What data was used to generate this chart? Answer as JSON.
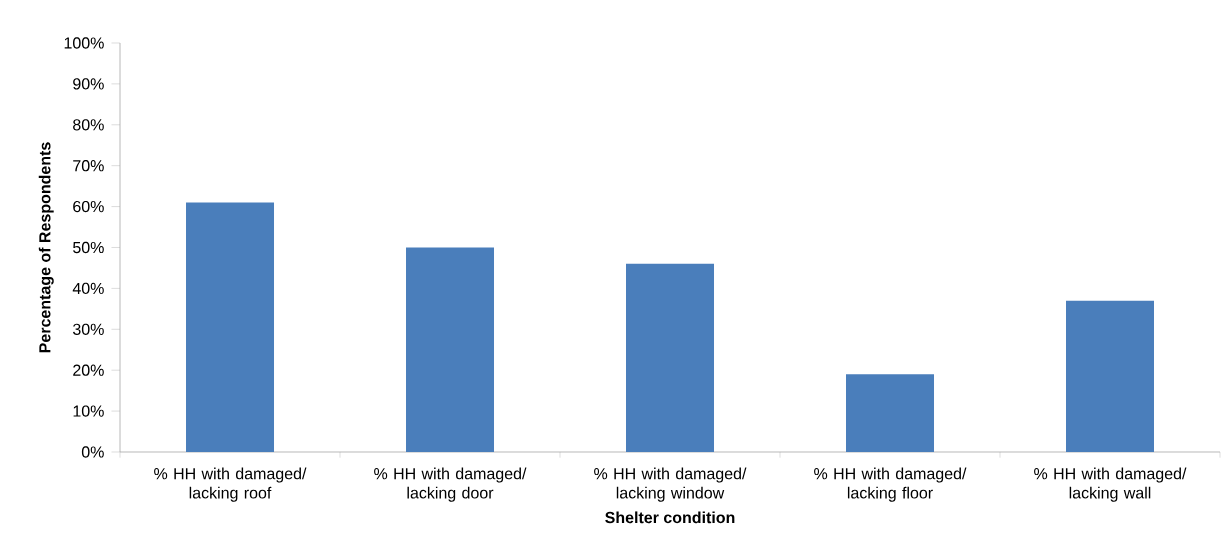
{
  "chart_data": {
    "type": "bar",
    "xlabel": "Shelter condition",
    "ylabel": "Percentage of Respondents",
    "categories": [
      "% HH with damaged/ lacking roof",
      "% HH with damaged/ lacking door",
      "% HH with damaged/ lacking window",
      "% HH with damaged/ lacking floor",
      "% HH with damaged/ lacking wall"
    ],
    "values": [
      61,
      50,
      46,
      19,
      37
    ],
    "color": "#4a7ebb",
    "ylim": [
      0,
      100
    ],
    "yticks": [
      {
        "value": 0,
        "label": "0%"
      },
      {
        "value": 10,
        "label": "10%"
      },
      {
        "value": 20,
        "label": "20%"
      },
      {
        "value": 30,
        "label": "30%"
      },
      {
        "value": 40,
        "label": "40%"
      },
      {
        "value": 50,
        "label": "50%"
      },
      {
        "value": 60,
        "label": "60%"
      },
      {
        "value": 70,
        "label": "70%"
      },
      {
        "value": 80,
        "label": "80%"
      },
      {
        "value": 90,
        "label": "90%"
      },
      {
        "value": 100,
        "label": "100%"
      }
    ],
    "grid": false
  }
}
